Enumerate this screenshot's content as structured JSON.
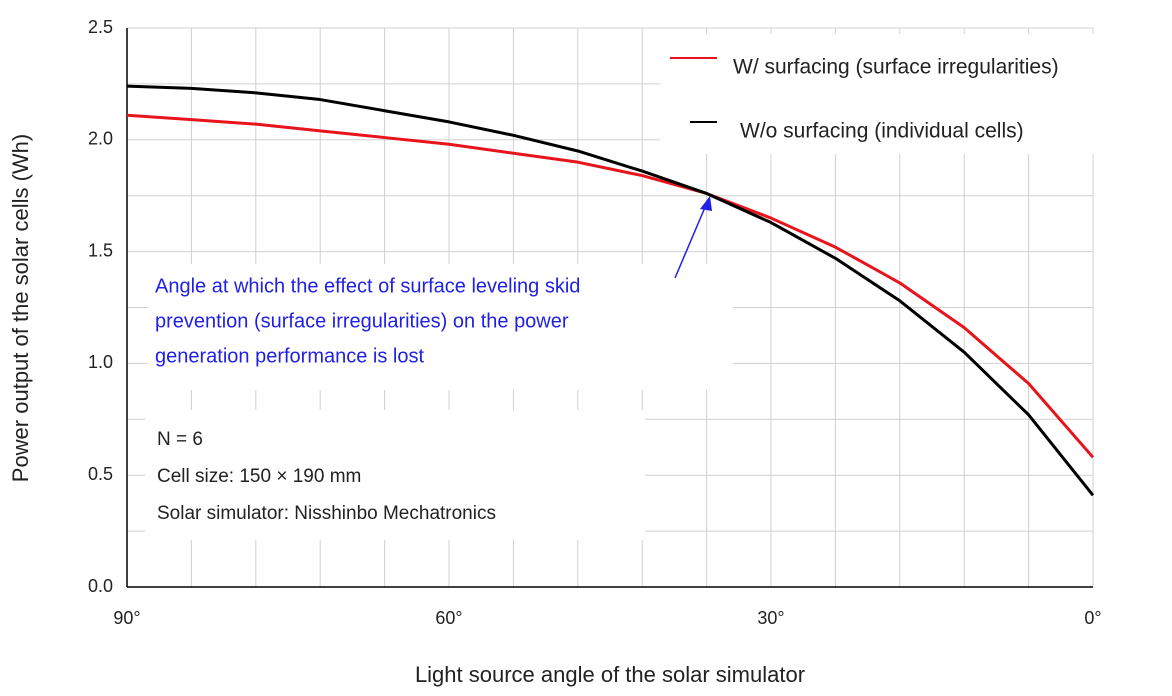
{
  "chart_data": {
    "type": "line",
    "x_label": "Light source angle of the solar simulator",
    "y_label": "Power output of the solar cells (Wh)",
    "x": [
      90,
      84,
      78,
      72,
      66,
      60,
      54,
      48,
      42,
      36,
      30,
      24,
      18,
      12,
      6,
      0
    ],
    "series": [
      {
        "name": "W/ surfacing (surface irregularities)",
        "color": "#e8141c",
        "values": [
          2.11,
          2.09,
          2.07,
          2.04,
          2.01,
          1.98,
          1.94,
          1.9,
          1.84,
          1.76,
          1.65,
          1.52,
          1.36,
          1.16,
          0.91,
          0.58
        ]
      },
      {
        "name": "W/o surfacing (individual cells)",
        "color": "#000000",
        "values": [
          2.24,
          2.23,
          2.21,
          2.18,
          2.13,
          2.08,
          2.02,
          1.95,
          1.86,
          1.76,
          1.63,
          1.47,
          1.28,
          1.05,
          0.77,
          0.41
        ]
      }
    ],
    "xlim": [
      90,
      0
    ],
    "ylim": [
      0,
      2.5
    ],
    "xticks": [
      {
        "value": 90,
        "label": "90°"
      },
      {
        "value": 60,
        "label": "60°"
      },
      {
        "value": 30,
        "label": "30°"
      },
      {
        "value": 0,
        "label": "0°"
      }
    ],
    "yticks": [
      {
        "value": 0,
        "label": "0.0"
      },
      0.5,
      {
        "value": 1,
        "label": "1.0"
      },
      1.5,
      {
        "value": 2,
        "label": "2.0"
      },
      2.5
    ],
    "x_grid": [
      84,
      78,
      72,
      66,
      54,
      48,
      42,
      36,
      24,
      18,
      12,
      6
    ],
    "y_grid": [
      0.25,
      0.75,
      1.25,
      1.75,
      2.25
    ],
    "grid": true,
    "legend": "top-right",
    "annotation": [
      "Angle at which the effect of surface leveling skid",
      "prevention (surface irregularities) on the power",
      "generation performance is lost"
    ],
    "notes": [
      "N = 6",
      "Cell size: 150 × 190 mm",
      "Solar simulator: Nisshinbo Mechatronics"
    ]
  }
}
